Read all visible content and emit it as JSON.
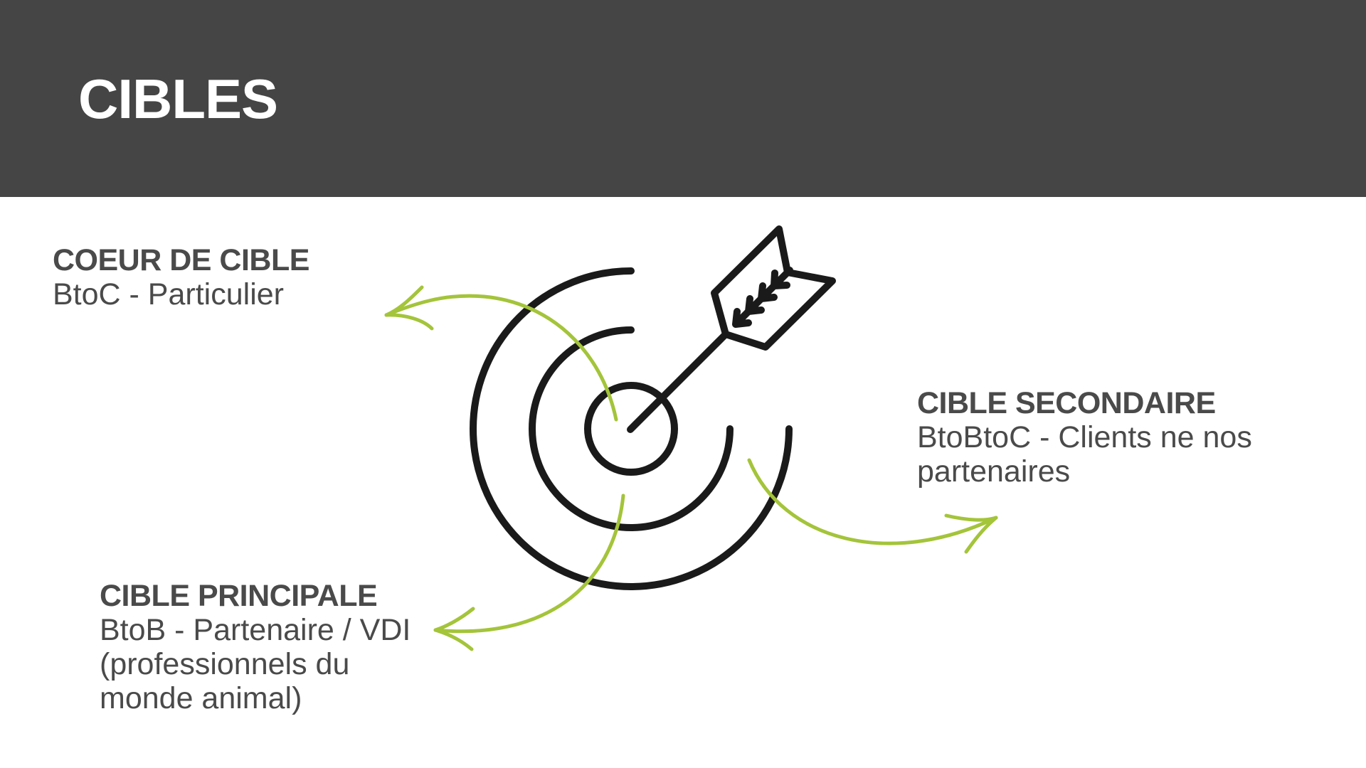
{
  "header": {
    "title": "CIBLES",
    "background_color": "#454545"
  },
  "colors": {
    "accent": "#a4c43a",
    "target": "#1a1a1a",
    "text": "#4a4a4a"
  },
  "icons": {
    "center": "target-with-arrow-icon"
  },
  "targets": [
    {
      "key": "coeur",
      "heading": "COEUR DE CIBLE",
      "description": "BtoC - Particulier"
    },
    {
      "key": "secondaire",
      "heading": "CIBLE SECONDAIRE",
      "description": "BtoBtoC - Clients ne nos partenaires"
    },
    {
      "key": "principale",
      "heading": "CIBLE PRINCIPALE",
      "description": "BtoB - Partenaire / VDI (professionnels du monde animal)"
    }
  ]
}
